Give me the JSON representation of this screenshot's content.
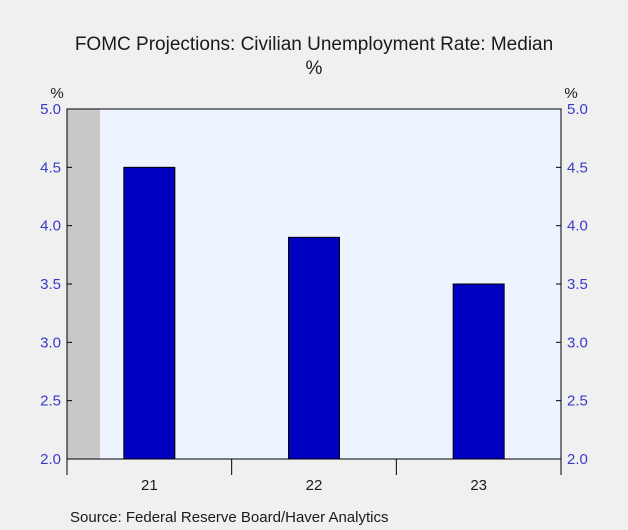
{
  "chart_data": {
    "type": "bar",
    "title": "FOMC Projections: Civilian Unemployment Rate: Median",
    "subtitle": "%",
    "y_unit_left": "%",
    "y_unit_right": "%",
    "categories": [
      "21",
      "22",
      "23"
    ],
    "values": [
      4.5,
      3.9,
      3.5
    ],
    "ylim": [
      2.0,
      5.0
    ],
    "yticks": [
      "5.0",
      "4.5",
      "4.0",
      "3.5",
      "3.0",
      "2.5",
      "2.0"
    ],
    "bar_color": "#0000c0",
    "plot_background": "#eef4ff",
    "shaded_region_color": "#c8c8c8",
    "grid": false,
    "source": "Source:  Federal Reserve Board/Haver Analytics"
  }
}
